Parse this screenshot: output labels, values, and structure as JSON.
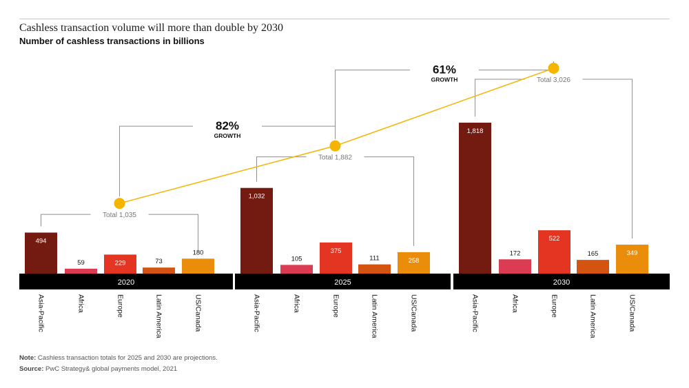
{
  "title": "Cashless transaction volume will more than double by 2030",
  "subtitle": "Number of cashless transactions in billions",
  "note_label": "Note:",
  "note_text": "Cashless transaction totals for 2025 and 2030 are projections.",
  "source_label": "Source:",
  "source_text": "PwC Strategy& global payments model, 2021",
  "chart_data": {
    "type": "bar",
    "categories": [
      "Asia-Pacific",
      "Africa",
      "Europe",
      "Latin America",
      "US/Canada"
    ],
    "colors": [
      "#731a11",
      "#dc3b54",
      "#e33522",
      "#d45310",
      "#ea8d0a"
    ],
    "line_color": "#f5b400",
    "groups": [
      {
        "year": "2020",
        "values": [
          494,
          59,
          229,
          73,
          180
        ],
        "total": 1035,
        "total_label": "Total 1,035"
      },
      {
        "year": "2025",
        "values": [
          1032,
          105,
          375,
          111,
          258
        ],
        "total": 1882,
        "total_label": "Total 1,882"
      },
      {
        "year": "2030",
        "values": [
          1818,
          172,
          522,
          165,
          349
        ],
        "total": 3026,
        "total_label": "Total 3,026"
      }
    ],
    "value_labels": [
      [
        "494",
        "59",
        "229",
        "73",
        "180"
      ],
      [
        "1,032",
        "105",
        "375",
        "111",
        "258"
      ],
      [
        "1,818",
        "172",
        "522",
        "165",
        "349"
      ]
    ],
    "growth": [
      {
        "pct": "82%",
        "label": "GROWTH"
      },
      {
        "pct": "61%",
        "label": "GROWTH"
      }
    ]
  }
}
